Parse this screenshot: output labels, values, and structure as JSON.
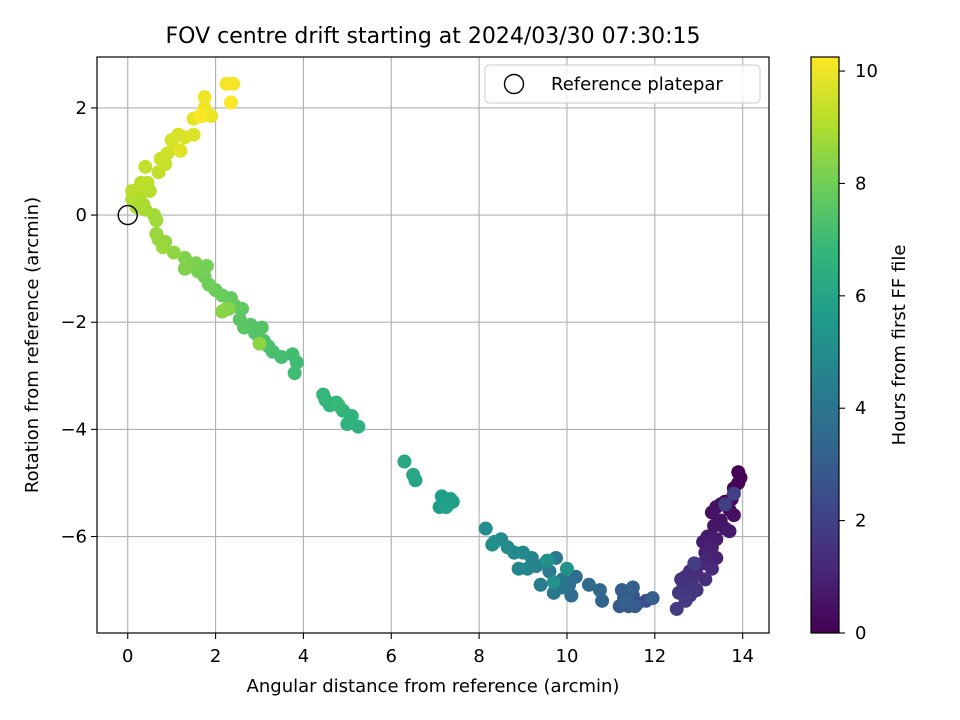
{
  "chart_data": {
    "type": "scatter",
    "title": "FOV centre drift starting at 2024/03/30 07:30:15",
    "xlabel": "Angular distance from reference (arcmin)",
    "ylabel": "Rotation from reference (arcmin)",
    "xlim": [
      -0.7,
      14.6
    ],
    "ylim": [
      -7.8,
      2.95
    ],
    "xticks": [
      0,
      2,
      4,
      6,
      8,
      10,
      12,
      14
    ],
    "yticks": [
      -6,
      -4,
      -2,
      0,
      2
    ],
    "grid": true,
    "legend": {
      "position": "top-right",
      "entries": [
        "Reference platepar"
      ]
    },
    "reference_point": {
      "x": 0,
      "y": 0,
      "label": "Reference platepar"
    },
    "colorbar": {
      "label": "Hours from first FF file",
      "colormap": "viridis",
      "range": [
        0,
        10.25
      ],
      "ticks": [
        0,
        2,
        4,
        6,
        8,
        10
      ]
    },
    "colormap_stops": [
      "#440154",
      "#482878",
      "#3e4989",
      "#31688e",
      "#26828e",
      "#1f9e89",
      "#35b779",
      "#6ece58",
      "#b5de2b",
      "#fde725"
    ],
    "points": [
      {
        "x": 13.9,
        "y": -4.8,
        "t": 0.0
      },
      {
        "x": 13.95,
        "y": -4.9,
        "t": 0.05
      },
      {
        "x": 13.9,
        "y": -5.0,
        "t": 0.1
      },
      {
        "x": 13.8,
        "y": -5.1,
        "t": 0.15
      },
      {
        "x": 13.75,
        "y": -5.3,
        "t": 0.2
      },
      {
        "x": 13.6,
        "y": -5.35,
        "t": 0.25
      },
      {
        "x": 13.5,
        "y": -5.4,
        "t": 0.3
      },
      {
        "x": 13.4,
        "y": -5.45,
        "t": 0.35
      },
      {
        "x": 13.7,
        "y": -5.5,
        "t": 0.4
      },
      {
        "x": 13.8,
        "y": -5.6,
        "t": 0.45
      },
      {
        "x": 13.3,
        "y": -5.55,
        "t": 0.5
      },
      {
        "x": 13.5,
        "y": -5.7,
        "t": 0.55
      },
      {
        "x": 13.35,
        "y": -5.8,
        "t": 0.6
      },
      {
        "x": 13.6,
        "y": -5.85,
        "t": 0.65
      },
      {
        "x": 13.7,
        "y": -5.9,
        "t": 0.7
      },
      {
        "x": 13.2,
        "y": -6.0,
        "t": 0.75
      },
      {
        "x": 13.4,
        "y": -6.05,
        "t": 0.8
      },
      {
        "x": 13.1,
        "y": -6.1,
        "t": 0.85
      },
      {
        "x": 13.3,
        "y": -6.2,
        "t": 0.9
      },
      {
        "x": 13.15,
        "y": -6.3,
        "t": 0.95
      },
      {
        "x": 13.4,
        "y": -6.4,
        "t": 1.0
      },
      {
        "x": 13.2,
        "y": -6.45,
        "t": 1.05
      },
      {
        "x": 13.1,
        "y": -6.5,
        "t": 1.1
      },
      {
        "x": 12.9,
        "y": -6.55,
        "t": 1.15
      },
      {
        "x": 13.3,
        "y": -6.6,
        "t": 1.2
      },
      {
        "x": 12.8,
        "y": -6.65,
        "t": 1.25
      },
      {
        "x": 12.95,
        "y": -6.7,
        "t": 1.3
      },
      {
        "x": 12.7,
        "y": -6.75,
        "t": 1.35
      },
      {
        "x": 13.15,
        "y": -6.8,
        "t": 1.4
      },
      {
        "x": 12.6,
        "y": -6.8,
        "t": 1.45
      },
      {
        "x": 12.85,
        "y": -6.9,
        "t": 1.5
      },
      {
        "x": 12.65,
        "y": -6.95,
        "t": 1.55
      },
      {
        "x": 12.95,
        "y": -7.0,
        "t": 1.6
      },
      {
        "x": 12.55,
        "y": -7.05,
        "t": 1.65
      },
      {
        "x": 12.8,
        "y": -7.1,
        "t": 1.7
      },
      {
        "x": 12.7,
        "y": -7.2,
        "t": 1.75
      },
      {
        "x": 12.5,
        "y": -7.35,
        "t": 1.8
      },
      {
        "x": 12.9,
        "y": -6.5,
        "t": 1.85
      },
      {
        "x": 13.6,
        "y": -5.4,
        "t": 1.9
      },
      {
        "x": 13.8,
        "y": -5.2,
        "t": 1.95
      },
      {
        "x": 11.8,
        "y": -7.2,
        "t": 2.4
      },
      {
        "x": 11.6,
        "y": -7.25,
        "t": 2.5
      },
      {
        "x": 11.5,
        "y": -7.1,
        "t": 2.6
      },
      {
        "x": 11.4,
        "y": -7.3,
        "t": 2.7
      },
      {
        "x": 11.3,
        "y": -7.15,
        "t": 2.8
      },
      {
        "x": 11.2,
        "y": -7.3,
        "t": 2.9
      },
      {
        "x": 11.25,
        "y": -7.0,
        "t": 3.0
      },
      {
        "x": 11.55,
        "y": -7.3,
        "t": 3.05
      },
      {
        "x": 11.95,
        "y": -7.15,
        "t": 3.1
      },
      {
        "x": 11.5,
        "y": -6.95,
        "t": 3.15
      },
      {
        "x": 11.35,
        "y": -7.2,
        "t": 3.2
      },
      {
        "x": 10.8,
        "y": -7.2,
        "t": 3.3
      },
      {
        "x": 10.75,
        "y": -7.0,
        "t": 3.4
      },
      {
        "x": 10.5,
        "y": -6.9,
        "t": 3.5
      },
      {
        "x": 10.1,
        "y": -7.1,
        "t": 3.6
      },
      {
        "x": 10.2,
        "y": -6.75,
        "t": 3.7
      },
      {
        "x": 10.05,
        "y": -6.9,
        "t": 3.8
      },
      {
        "x": 9.9,
        "y": -6.95,
        "t": 3.9
      },
      {
        "x": 9.9,
        "y": -6.8,
        "t": 4.0
      },
      {
        "x": 9.7,
        "y": -7.05,
        "t": 4.1
      },
      {
        "x": 9.6,
        "y": -6.65,
        "t": 4.15
      },
      {
        "x": 9.75,
        "y": -6.4,
        "t": 4.2
      },
      {
        "x": 9.4,
        "y": -6.9,
        "t": 4.3
      },
      {
        "x": 9.5,
        "y": -6.5,
        "t": 4.4
      },
      {
        "x": 9.3,
        "y": -6.55,
        "t": 4.5
      },
      {
        "x": 9.2,
        "y": -6.4,
        "t": 4.6
      },
      {
        "x": 9.1,
        "y": -6.6,
        "t": 4.7
      },
      {
        "x": 8.9,
        "y": -6.6,
        "t": 4.75
      },
      {
        "x": 9.0,
        "y": -6.3,
        "t": 4.8
      },
      {
        "x": 8.8,
        "y": -6.3,
        "t": 4.85
      },
      {
        "x": 8.65,
        "y": -6.2,
        "t": 4.9
      },
      {
        "x": 8.5,
        "y": -6.05,
        "t": 4.95
      },
      {
        "x": 8.3,
        "y": -6.15,
        "t": 5.0
      },
      {
        "x": 8.15,
        "y": -5.85,
        "t": 5.05
      },
      {
        "x": 8.35,
        "y": -6.1,
        "t": 5.1
      },
      {
        "x": 9.55,
        "y": -6.45,
        "t": 5.15
      },
      {
        "x": 9.7,
        "y": -6.85,
        "t": 5.2
      },
      {
        "x": 10.0,
        "y": -6.6,
        "t": 5.25
      },
      {
        "x": 7.3,
        "y": -5.4,
        "t": 5.6
      },
      {
        "x": 7.1,
        "y": -5.45,
        "t": 5.65
      },
      {
        "x": 7.35,
        "y": -5.3,
        "t": 5.7
      },
      {
        "x": 7.15,
        "y": -5.25,
        "t": 5.75
      },
      {
        "x": 7.4,
        "y": -5.35,
        "t": 5.8
      },
      {
        "x": 7.25,
        "y": -5.45,
        "t": 5.85
      },
      {
        "x": 6.55,
        "y": -4.95,
        "t": 6.0
      },
      {
        "x": 6.5,
        "y": -4.85,
        "t": 6.05
      },
      {
        "x": 6.3,
        "y": -4.6,
        "t": 6.1
      },
      {
        "x": 5.25,
        "y": -3.95,
        "t": 6.5
      },
      {
        "x": 5.0,
        "y": -3.9,
        "t": 6.55
      },
      {
        "x": 5.1,
        "y": -3.75,
        "t": 6.6
      },
      {
        "x": 4.9,
        "y": -3.65,
        "t": 6.65
      },
      {
        "x": 4.75,
        "y": -3.5,
        "t": 6.7
      },
      {
        "x": 4.6,
        "y": -3.55,
        "t": 6.75
      },
      {
        "x": 4.5,
        "y": -3.45,
        "t": 6.8
      },
      {
        "x": 4.45,
        "y": -3.35,
        "t": 6.85
      },
      {
        "x": 4.8,
        "y": -3.55,
        "t": 6.9
      },
      {
        "x": 3.85,
        "y": -2.75,
        "t": 7.0
      },
      {
        "x": 3.8,
        "y": -2.95,
        "t": 7.05
      },
      {
        "x": 3.75,
        "y": -2.6,
        "t": 7.1
      },
      {
        "x": 3.5,
        "y": -2.65,
        "t": 7.15
      },
      {
        "x": 3.3,
        "y": -2.55,
        "t": 7.2
      },
      {
        "x": 3.2,
        "y": -2.45,
        "t": 7.25
      },
      {
        "x": 3.1,
        "y": -2.35,
        "t": 7.3
      },
      {
        "x": 3.0,
        "y": -2.3,
        "t": 7.35
      },
      {
        "x": 2.9,
        "y": -2.2,
        "t": 7.4
      },
      {
        "x": 3.05,
        "y": -2.1,
        "t": 7.45
      },
      {
        "x": 2.8,
        "y": -2.05,
        "t": 7.5
      },
      {
        "x": 2.65,
        "y": -2.1,
        "t": 7.55
      },
      {
        "x": 2.55,
        "y": -1.95,
        "t": 7.6
      },
      {
        "x": 2.6,
        "y": -1.75,
        "t": 7.65
      },
      {
        "x": 2.45,
        "y": -1.7,
        "t": 7.7
      },
      {
        "x": 2.35,
        "y": -1.55,
        "t": 7.75
      },
      {
        "x": 2.25,
        "y": -1.75,
        "t": 7.8
      },
      {
        "x": 2.15,
        "y": -1.5,
        "t": 7.85
      },
      {
        "x": 2.0,
        "y": -1.4,
        "t": 7.9
      },
      {
        "x": 1.85,
        "y": -1.3,
        "t": 7.95
      },
      {
        "x": 1.75,
        "y": -1.15,
        "t": 8.0
      },
      {
        "x": 1.8,
        "y": -0.95,
        "t": 8.05
      },
      {
        "x": 1.6,
        "y": -1.05,
        "t": 8.1
      },
      {
        "x": 1.55,
        "y": -0.9,
        "t": 8.15
      },
      {
        "x": 1.4,
        "y": -0.95,
        "t": 8.2
      },
      {
        "x": 1.3,
        "y": -0.8,
        "t": 8.25
      },
      {
        "x": 1.3,
        "y": -1.0,
        "t": 8.3
      },
      {
        "x": 2.3,
        "y": -1.75,
        "t": 8.35
      },
      {
        "x": 2.15,
        "y": -1.8,
        "t": 8.4
      },
      {
        "x": 3.0,
        "y": -2.4,
        "t": 8.45
      },
      {
        "x": 1.05,
        "y": -0.7,
        "t": 8.5
      },
      {
        "x": 0.85,
        "y": -0.5,
        "t": 8.55
      },
      {
        "x": 0.7,
        "y": -0.45,
        "t": 8.6
      },
      {
        "x": 0.65,
        "y": -0.35,
        "t": 8.65
      },
      {
        "x": 0.8,
        "y": -0.6,
        "t": 8.7
      },
      {
        "x": 0.65,
        "y": -0.1,
        "t": 8.75
      },
      {
        "x": 0.6,
        "y": 0.0,
        "t": 8.8
      },
      {
        "x": 0.4,
        "y": 0.1,
        "t": 8.85
      },
      {
        "x": 0.2,
        "y": 0.15,
        "t": 8.9
      },
      {
        "x": 0.35,
        "y": 0.2,
        "t": 8.95
      },
      {
        "x": 0.1,
        "y": 0.3,
        "t": 9.0
      },
      {
        "x": 0.3,
        "y": 0.4,
        "t": 9.05
      },
      {
        "x": 0.5,
        "y": 0.45,
        "t": 9.1
      },
      {
        "x": 0.1,
        "y": 0.45,
        "t": 9.15
      },
      {
        "x": 0.45,
        "y": 0.6,
        "t": 9.2
      },
      {
        "x": 0.3,
        "y": 0.6,
        "t": 9.25
      },
      {
        "x": 0.7,
        "y": 0.8,
        "t": 9.3
      },
      {
        "x": 0.4,
        "y": 0.9,
        "t": 9.35
      },
      {
        "x": 0.85,
        "y": 0.95,
        "t": 9.4
      },
      {
        "x": 0.75,
        "y": 1.05,
        "t": 9.45
      },
      {
        "x": 0.9,
        "y": 1.15,
        "t": 9.5
      },
      {
        "x": 1.05,
        "y": 1.25,
        "t": 9.55
      },
      {
        "x": 1.0,
        "y": 1.4,
        "t": 9.6
      },
      {
        "x": 1.15,
        "y": 1.5,
        "t": 9.65
      },
      {
        "x": 1.3,
        "y": 1.45,
        "t": 9.7
      },
      {
        "x": 1.5,
        "y": 1.5,
        "t": 9.75
      },
      {
        "x": 1.2,
        "y": 1.2,
        "t": 9.8
      },
      {
        "x": 1.5,
        "y": 1.8,
        "t": 9.85
      },
      {
        "x": 1.7,
        "y": 1.85,
        "t": 9.9
      },
      {
        "x": 1.9,
        "y": 1.85,
        "t": 9.95
      },
      {
        "x": 1.75,
        "y": 2.0,
        "t": 10.0
      },
      {
        "x": 1.75,
        "y": 2.2,
        "t": 10.05
      },
      {
        "x": 2.25,
        "y": 2.45,
        "t": 10.1
      },
      {
        "x": 2.4,
        "y": 2.45,
        "t": 10.15
      },
      {
        "x": 2.35,
        "y": 2.1,
        "t": 10.2
      },
      {
        "x": 1.65,
        "y": 1.85,
        "t": 10.25
      }
    ]
  }
}
